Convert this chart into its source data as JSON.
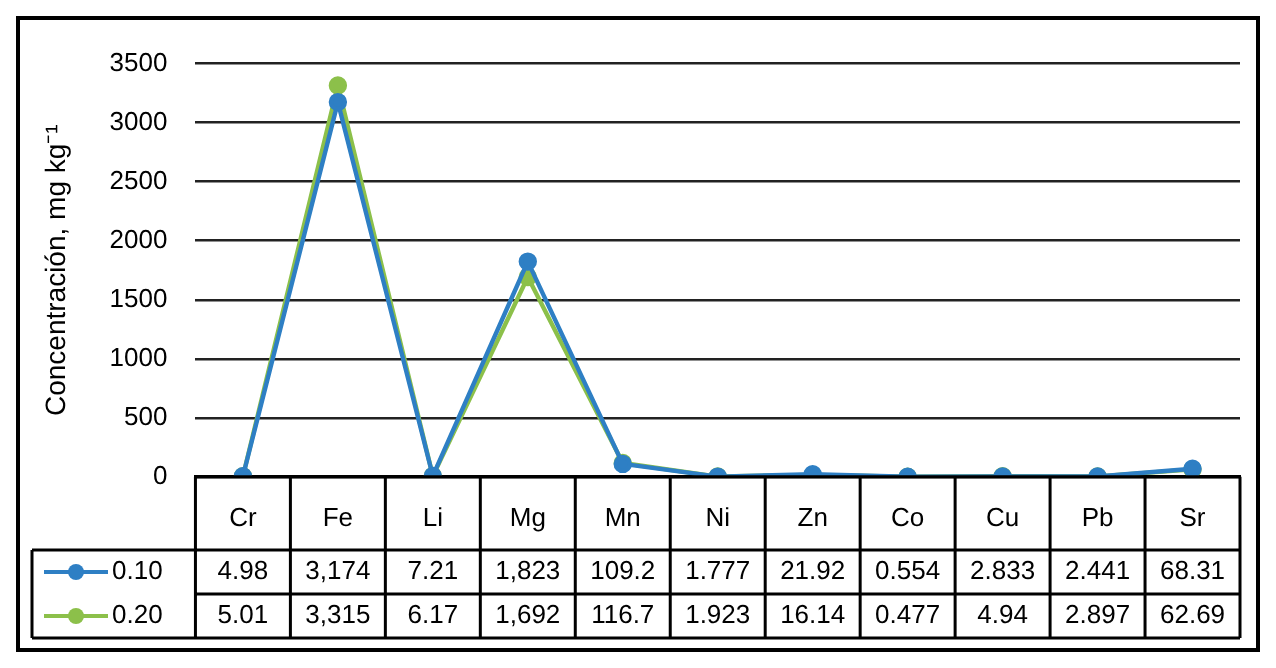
{
  "chart_data": {
    "type": "line",
    "ylabel": "Concentración, mg kg⁻¹",
    "categories": [
      "Cr",
      "Fe",
      "Li",
      "Mg",
      "Mn",
      "Ni",
      "Zn",
      "Co",
      "Cu",
      "Pb",
      "Sr"
    ],
    "series": [
      {
        "name": "0.10",
        "color": "#2e7fc4",
        "values": [
          4.98,
          3174,
          7.21,
          1823,
          109.2,
          1.777,
          21.92,
          0.554,
          2.833,
          2.441,
          68.31
        ],
        "value_labels": [
          "4.98",
          "3,174",
          "7.21",
          "1,823",
          "109.2",
          "1.777",
          "21.92",
          "0.554",
          "2.833",
          "2.441",
          "68.31"
        ]
      },
      {
        "name": "0.20",
        "color": "#8cc04a",
        "values": [
          5.01,
          3315,
          6.17,
          1692,
          116.7,
          1.923,
          16.14,
          0.477,
          4.94,
          2.897,
          62.69
        ],
        "value_labels": [
          "5.01",
          "3,315",
          "6.17",
          "1,692",
          "116.7",
          "1.923",
          "16.14",
          "0.477",
          "4.94",
          "2.897",
          "62.69"
        ]
      }
    ],
    "ylim": [
      0,
      3500
    ],
    "yticks": [
      0,
      500,
      1000,
      1500,
      2000,
      2500,
      3000,
      3500
    ],
    "grid": "y",
    "legend": "bottom",
    "marker": "circle",
    "line_style": "solid"
  }
}
